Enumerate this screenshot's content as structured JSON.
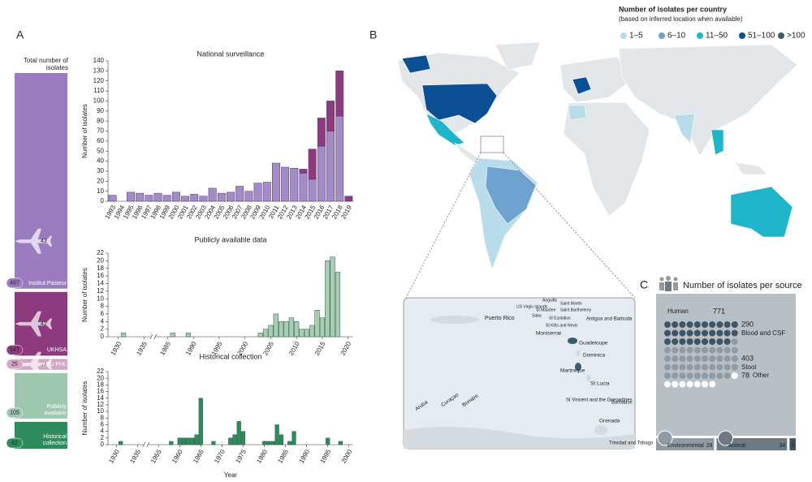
{
  "panels": {
    "a": "A",
    "b": "B",
    "c": "C"
  },
  "sources": {
    "title": "Total number of isolates",
    "items": [
      {
        "name": "Institut Pasteur",
        "value": 497,
        "travel": 43,
        "color": "#9b7cc1"
      },
      {
        "name": "UKHSA",
        "value": 147,
        "travel": 42,
        "color": "#8e3a7e"
      },
      {
        "name": "MDU PHL",
        "value": 25,
        "travel": 18,
        "color": "#d3a6c6"
      },
      {
        "name": "Publicly available",
        "value": 105,
        "color": "#9fc6ae"
      },
      {
        "name": "Historical collection",
        "value": 62,
        "color": "#2e8b5b"
      }
    ]
  },
  "chart_data": [
    {
      "type": "bar",
      "stacked": true,
      "title": "National surveillance",
      "ylabel": "Number of isolates",
      "categories": [
        "1993",
        "1994",
        "1995",
        "1996",
        "1997",
        "1998",
        "1999",
        "2000",
        "2001",
        "2002",
        "2003",
        "2004",
        "2005",
        "2006",
        "2007",
        "2008",
        "2009",
        "2010",
        "2011",
        "2012",
        "2013",
        "2014",
        "2015",
        "2016",
        "2017",
        "2018",
        "2019"
      ],
      "series": [
        {
          "color": "#a38bc8",
          "values": [
            6,
            0,
            9,
            8,
            6,
            8,
            6,
            9,
            5,
            7,
            5,
            13,
            8,
            9,
            15,
            10,
            18,
            19,
            38,
            34,
            33,
            28,
            22,
            55,
            70,
            85,
            0
          ]
        },
        {
          "color": "#8e3a7e",
          "values": [
            0,
            0,
            0,
            0,
            0,
            0,
            0,
            0,
            0,
            0,
            0,
            0,
            0,
            0,
            0,
            0,
            0,
            0,
            0,
            0,
            0,
            4,
            30,
            28,
            30,
            45,
            5
          ]
        }
      ],
      "ylim": [
        0,
        140
      ],
      "yticks": [
        0,
        10,
        20,
        30,
        40,
        50,
        60,
        70,
        80,
        90,
        100,
        110,
        120,
        130,
        140
      ]
    },
    {
      "type": "bar",
      "title": "Publicly available data",
      "ylabel": "Number of isolates",
      "color": "#a8cdb4",
      "x": [
        1931,
        1986,
        1989,
        2003,
        2004,
        2005,
        2006,
        2007,
        2008,
        2009,
        2010,
        2011,
        2012,
        2013,
        2014,
        2015,
        2016,
        2017,
        2018
      ],
      "values": [
        1,
        1,
        1,
        1,
        2,
        3,
        6,
        4,
        4,
        5,
        4,
        2,
        2,
        3,
        7,
        5,
        20,
        21,
        17
      ],
      "xlim": [
        1928,
        2021
      ],
      "xbreak": [
        1936,
        1983
      ],
      "xticks": [
        1930,
        1935,
        1985,
        1990,
        1995,
        2000,
        2005,
        2010,
        2015,
        2020
      ],
      "ylim": [
        0,
        22
      ],
      "yticks": [
        0,
        2,
        4,
        6,
        8,
        10,
        12,
        14,
        16,
        18,
        20,
        22
      ]
    },
    {
      "type": "bar",
      "title": "Historical collection",
      "ylabel": "Number of isolates",
      "xlabel": "Year",
      "color": "#2e8b5b",
      "x": [
        1931,
        1958,
        1960,
        1961,
        1962,
        1963,
        1964,
        1965,
        1968,
        1972,
        1973,
        1974,
        1975,
        1980,
        1981,
        1982,
        1983,
        1984,
        1986,
        1987,
        1995,
        1998
      ],
      "values": [
        1,
        1,
        2,
        2,
        2,
        2,
        3,
        14,
        1,
        2,
        3,
        7,
        4,
        1,
        1,
        1,
        6,
        3,
        1,
        4,
        2,
        1
      ],
      "xlim": [
        1928,
        2001
      ],
      "xbreak": [
        1936,
        1953
      ],
      "xticks": [
        1930,
        1935,
        1955,
        1960,
        1965,
        1970,
        1975,
        1980,
        1985,
        1990,
        1995,
        2000
      ],
      "ylim": [
        0,
        22
      ],
      "yticks": [
        0,
        2,
        4,
        6,
        8,
        10,
        12,
        14,
        16,
        18,
        20,
        22
      ]
    }
  ],
  "map": {
    "legend_title": "Number of isolates per country",
    "legend_subtitle": "(based on inferred location when available)",
    "legend": [
      {
        "label": "1–5",
        "color": "#b9dcea"
      },
      {
        "label": "6–10",
        "color": "#6fa3cf"
      },
      {
        "label": "11–50",
        "color": "#1fb5c9"
      },
      {
        "label": "51–100",
        "color": "#0b4f94"
      },
      {
        "label": ">100",
        "color": "#3b5b6e"
      }
    ],
    "inset_labels": [
      "Puerto Rico",
      "US Virgin Islands",
      "Anguilla",
      "Saint Martin",
      "Saint Barthelemy",
      "St Maarten",
      "Saba",
      "St Eustatius",
      "St Kitts and Nevis",
      "Antigua and Barbuda",
      "Montserrat",
      "Guadeloupe",
      "Dominica",
      "Martinique",
      "St Lucia",
      "St Vincent and the Grenadines",
      "Barbados",
      "Grenada",
      "Trinidad and Tobago",
      "Aruba",
      "Curaçao",
      "Bonaire"
    ]
  },
  "per_source": {
    "title": "Number of isolates per source",
    "human": {
      "label": "Human",
      "value": 771
    },
    "groups": [
      {
        "value": 290,
        "label": "Blood and CSF",
        "color": "#3d5566"
      },
      {
        "value": 403,
        "label": "Stool",
        "color": "#8f9aa2"
      },
      {
        "value": 78,
        "label": "Other",
        "color": "#ffffff"
      }
    ],
    "others": [
      {
        "label": "Environmental",
        "value": 28,
        "color": "#8f9aa2"
      },
      {
        "label": "Animal",
        "value": 34,
        "color": "#6c7a84"
      },
      {
        "value": 3,
        "color": "#3d5566"
      }
    ]
  }
}
